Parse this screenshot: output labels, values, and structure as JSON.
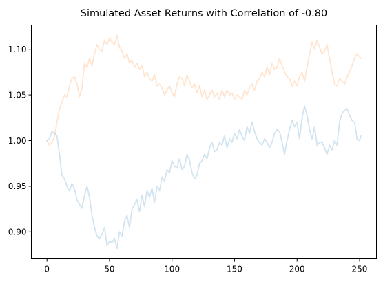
{
  "chart_data": {
    "type": "line",
    "title": "Simulated Asset Returns with Correlation of -0.80",
    "xlabel": "",
    "ylabel": "",
    "xlim": [
      -12.5,
      263.5
    ],
    "ylim": [
      0.8705,
      1.1265
    ],
    "xticks": [
      0,
      50,
      100,
      150,
      200,
      250
    ],
    "yticks": [
      0.9,
      0.95,
      1.0,
      1.05,
      1.1
    ],
    "xtick_labels": [
      "0",
      "50",
      "100",
      "150",
      "200",
      "250"
    ],
    "ytick_labels": [
      "0.90",
      "0.95",
      "1.00",
      "1.05",
      "1.10"
    ],
    "grid": false,
    "legend": "none",
    "series": [
      {
        "color": "#1f77b4",
        "opacity": 0.2,
        "x": [
          0,
          2,
          4,
          6,
          8,
          10,
          12,
          14,
          16,
          18,
          20,
          22,
          24,
          26,
          28,
          30,
          32,
          34,
          36,
          38,
          40,
          42,
          44,
          46,
          48,
          50,
          52,
          54,
          56,
          58,
          60,
          62,
          64,
          66,
          68,
          70,
          72,
          74,
          76,
          78,
          80,
          82,
          84,
          86,
          88,
          90,
          92,
          94,
          96,
          98,
          100,
          102,
          104,
          106,
          108,
          110,
          112,
          114,
          116,
          118,
          120,
          122,
          124,
          126,
          128,
          130,
          132,
          134,
          136,
          138,
          140,
          142,
          144,
          146,
          148,
          150,
          152,
          154,
          156,
          158,
          160,
          162,
          164,
          166,
          168,
          170,
          172,
          174,
          176,
          178,
          180,
          182,
          184,
          186,
          188,
          190,
          192,
          194,
          196,
          198,
          200,
          202,
          204,
          206,
          208,
          210,
          212,
          214,
          216,
          218,
          220,
          222,
          224,
          226,
          228,
          230,
          232,
          234,
          236,
          238,
          240,
          242,
          244,
          246,
          248,
          250,
          251
        ],
        "values": [
          1.0,
          1.002,
          1.01,
          1.008,
          1.005,
          0.985,
          0.962,
          0.958,
          0.95,
          0.945,
          0.953,
          0.947,
          0.935,
          0.93,
          0.926,
          0.94,
          0.95,
          0.938,
          0.918,
          0.905,
          0.895,
          0.893,
          0.897,
          0.905,
          0.885,
          0.89,
          0.888,
          0.893,
          0.882,
          0.9,
          0.895,
          0.912,
          0.918,
          0.905,
          0.925,
          0.93,
          0.935,
          0.922,
          0.94,
          0.928,
          0.945,
          0.938,
          0.948,
          0.932,
          0.95,
          0.945,
          0.96,
          0.955,
          0.968,
          0.965,
          0.978,
          0.972,
          0.97,
          0.98,
          0.968,
          0.972,
          0.985,
          0.978,
          0.965,
          0.958,
          0.962,
          0.975,
          0.978,
          0.985,
          0.98,
          0.992,
          0.998,
          0.988,
          0.99,
          0.998,
          0.995,
          1.005,
          0.992,
          1.002,
          0.998,
          1.008,
          1.002,
          1.012,
          1.005,
          1.0,
          1.015,
          1.008,
          1.02,
          1.01,
          1.002,
          0.998,
          0.995,
          1.002,
          0.998,
          0.992,
          0.998,
          1.008,
          1.012,
          1.01,
          0.998,
          0.985,
          1.0,
          1.012,
          1.022,
          1.015,
          1.02,
          1.002,
          1.025,
          1.038,
          1.028,
          1.012,
          1.002,
          1.015,
          0.995,
          0.998,
          0.998,
          0.992,
          0.985,
          0.995,
          0.99,
          1.0,
          0.995,
          1.02,
          1.03,
          1.033,
          1.035,
          1.028,
          1.022,
          1.02,
          1.002,
          1.0,
          1.005
        ]
      },
      {
        "color": "#ff7f0e",
        "opacity": 0.2,
        "x": [
          0,
          2,
          4,
          6,
          8,
          10,
          12,
          14,
          16,
          18,
          20,
          22,
          24,
          26,
          28,
          30,
          32,
          34,
          36,
          38,
          40,
          42,
          44,
          46,
          48,
          50,
          52,
          54,
          56,
          58,
          60,
          62,
          64,
          66,
          68,
          70,
          72,
          74,
          76,
          78,
          80,
          82,
          84,
          86,
          88,
          90,
          92,
          94,
          96,
          98,
          100,
          102,
          104,
          106,
          108,
          110,
          112,
          114,
          116,
          118,
          120,
          122,
          124,
          126,
          128,
          130,
          132,
          134,
          136,
          138,
          140,
          142,
          144,
          146,
          148,
          150,
          152,
          154,
          156,
          158,
          160,
          162,
          164,
          166,
          168,
          170,
          172,
          174,
          176,
          178,
          180,
          182,
          184,
          186,
          188,
          190,
          192,
          194,
          196,
          198,
          200,
          202,
          204,
          206,
          208,
          210,
          212,
          214,
          216,
          218,
          220,
          222,
          224,
          226,
          228,
          230,
          232,
          234,
          236,
          238,
          240,
          242,
          244,
          246,
          248,
          250,
          251
        ],
        "values": [
          1.0,
          0.995,
          0.998,
          1.005,
          1.02,
          1.035,
          1.042,
          1.05,
          1.048,
          1.06,
          1.068,
          1.07,
          1.062,
          1.048,
          1.058,
          1.085,
          1.08,
          1.09,
          1.082,
          1.095,
          1.105,
          1.1,
          1.098,
          1.11,
          1.105,
          1.112,
          1.108,
          1.105,
          1.115,
          1.102,
          1.098,
          1.09,
          1.095,
          1.085,
          1.088,
          1.08,
          1.085,
          1.078,
          1.082,
          1.07,
          1.075,
          1.068,
          1.065,
          1.072,
          1.06,
          1.062,
          1.058,
          1.05,
          1.055,
          1.06,
          1.052,
          1.048,
          1.062,
          1.07,
          1.068,
          1.06,
          1.072,
          1.065,
          1.058,
          1.062,
          1.052,
          1.06,
          1.048,
          1.055,
          1.045,
          1.05,
          1.055,
          1.048,
          1.052,
          1.045,
          1.055,
          1.048,
          1.055,
          1.05,
          1.052,
          1.045,
          1.05,
          1.048,
          1.045,
          1.055,
          1.05,
          1.058,
          1.062,
          1.055,
          1.065,
          1.068,
          1.075,
          1.07,
          1.08,
          1.072,
          1.085,
          1.078,
          1.08,
          1.09,
          1.082,
          1.075,
          1.07,
          1.068,
          1.06,
          1.065,
          1.06,
          1.07,
          1.075,
          1.065,
          1.08,
          1.095,
          1.108,
          1.1,
          1.11,
          1.102,
          1.095,
          1.098,
          1.105,
          1.09,
          1.075,
          1.062,
          1.06,
          1.068,
          1.065,
          1.062,
          1.07,
          1.075,
          1.082,
          1.09,
          1.095,
          1.092,
          1.09
        ]
      }
    ]
  }
}
